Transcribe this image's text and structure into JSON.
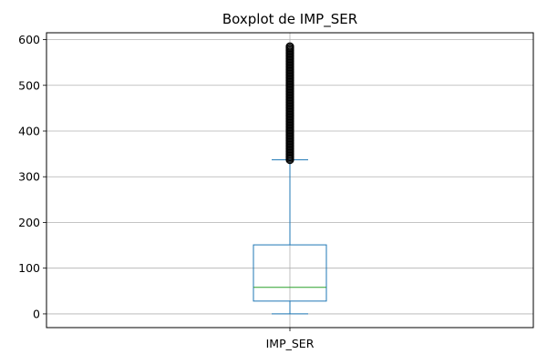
{
  "chart_data": {
    "type": "boxplot",
    "title": "Boxplot de IMP_SER",
    "xlabel": "",
    "ylabel": "",
    "categories": [
      "IMP_SER"
    ],
    "ylim": [
      -30,
      615
    ],
    "yticks": [
      0,
      100,
      200,
      300,
      400,
      500,
      600
    ],
    "grid": true,
    "boxes": [
      {
        "name": "IMP_SER",
        "whisker_low": 0,
        "q1": 28,
        "median": 58,
        "q3": 151,
        "whisker_high": 337,
        "outliers_min": 337,
        "outliers_max": 587
      }
    ],
    "colors": {
      "box": "#1f77b4",
      "median": "#2ca02c",
      "outlier": "#000000",
      "grid": "#b0b0b0"
    }
  }
}
